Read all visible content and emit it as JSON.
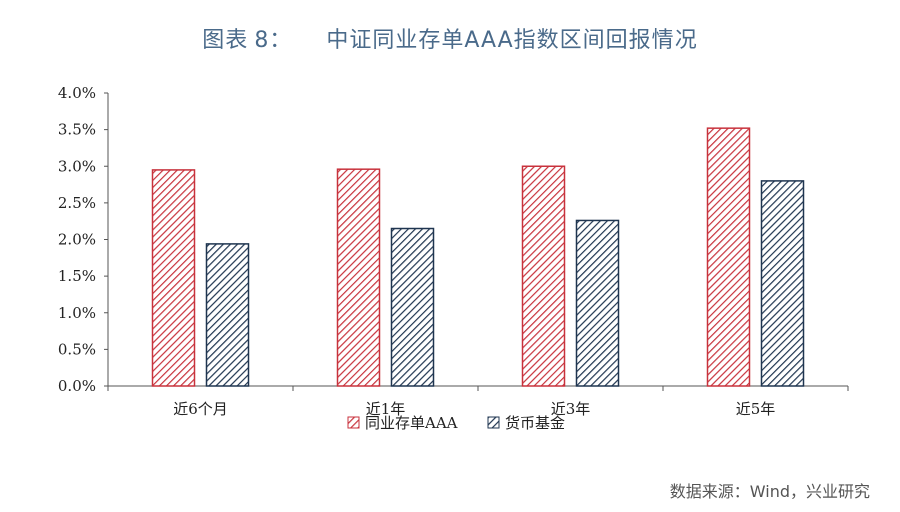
{
  "title": {
    "prefix": "图表",
    "number": "8：",
    "text": "中证同业存单AAA指数区间回报情况"
  },
  "source": "数据来源：Wind，兴业研究",
  "colors": {
    "series1": "#c8323c",
    "series2": "#1f3550",
    "title": "#4a6a8a"
  },
  "chart_data": {
    "type": "bar",
    "categories": [
      "近6个月",
      "近1年",
      "近3年",
      "近5年"
    ],
    "series": [
      {
        "name": "同业存单AAA",
        "values": [
          2.95,
          2.96,
          3.0,
          3.52
        ],
        "color": "#c8323c"
      },
      {
        "name": "货币基金",
        "values": [
          1.94,
          2.15,
          2.26,
          2.8
        ],
        "color": "#1f3550"
      }
    ],
    "ylim": [
      0,
      4.0
    ],
    "yticks": [
      "0.0%",
      "0.5%",
      "1.0%",
      "1.5%",
      "2.0%",
      "2.5%",
      "3.0%",
      "3.5%",
      "4.0%"
    ],
    "ytick_values": [
      0,
      0.5,
      1.0,
      1.5,
      2.0,
      2.5,
      3.0,
      3.5,
      4.0
    ],
    "legend_position": "bottom",
    "grid": false,
    "hatch": "diagonal"
  }
}
